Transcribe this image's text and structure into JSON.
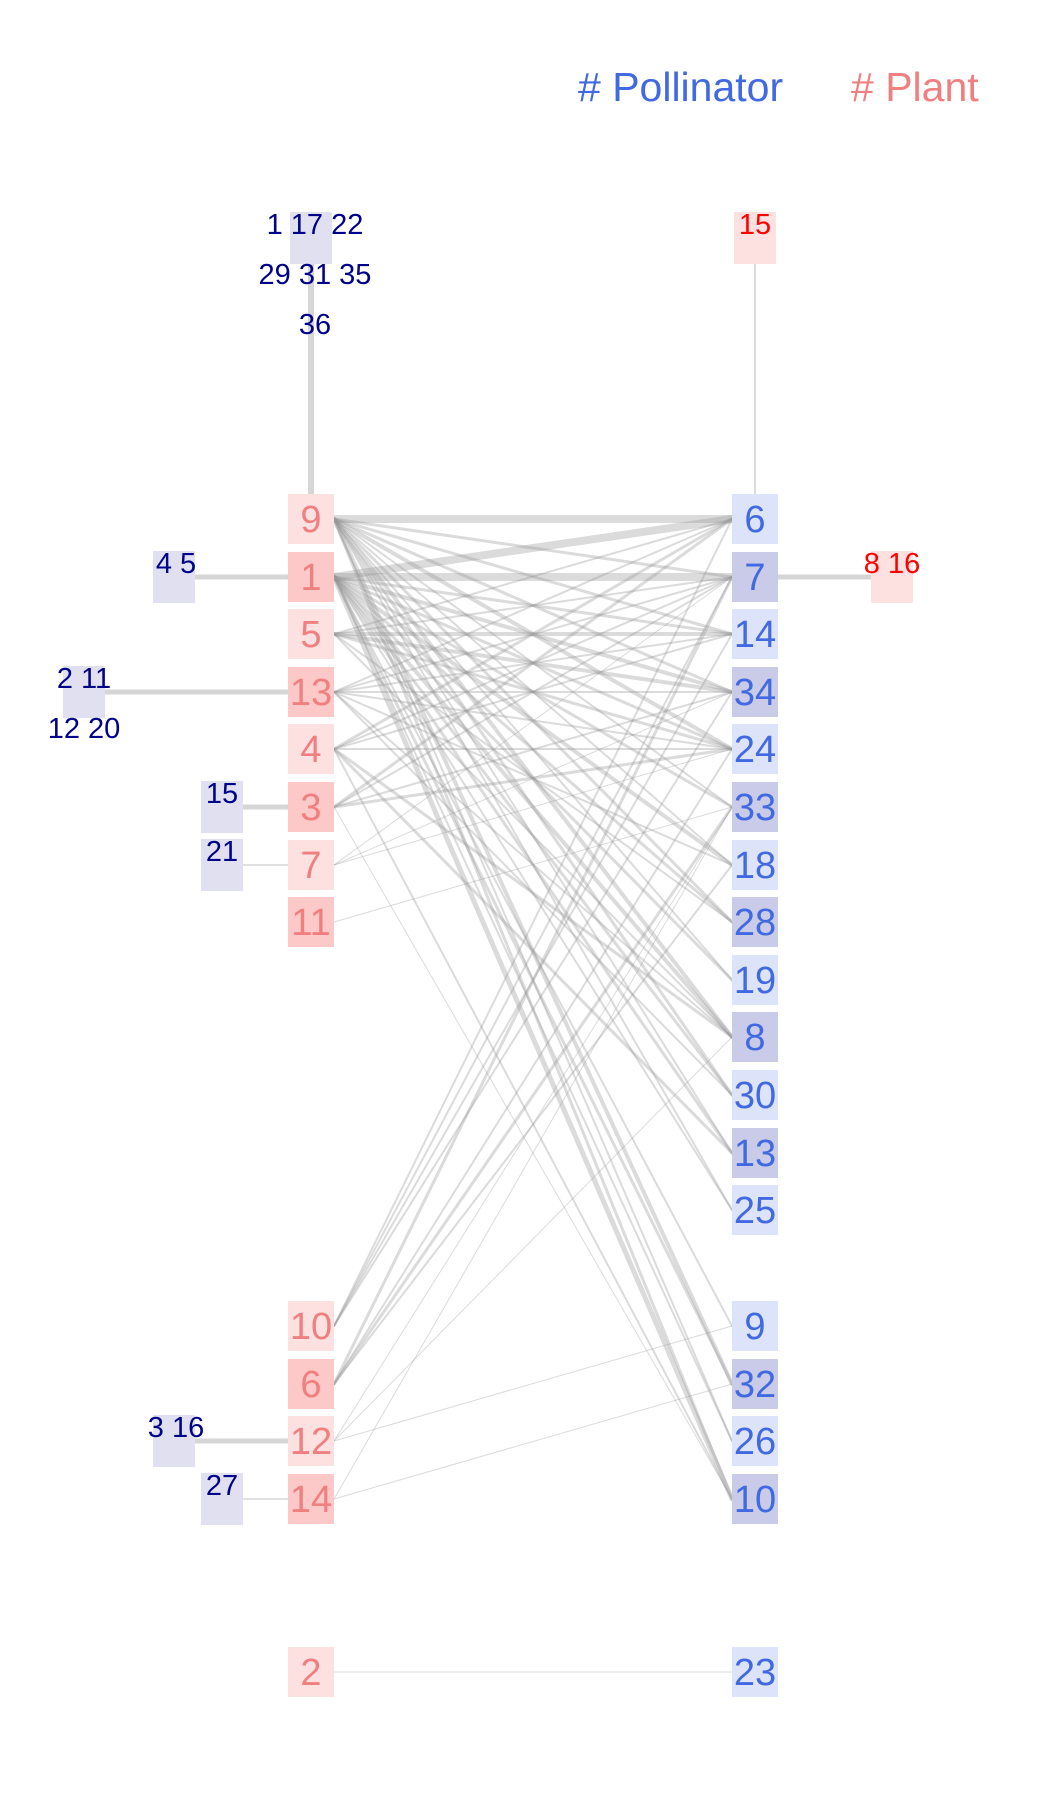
{
  "legend": {
    "pollinator_label": "# Pollinator",
    "plant_label": "# Plant",
    "pollinator_color": "#4169e1",
    "plant_color": "#f08080"
  },
  "colors": {
    "pollinator_text": "#4169e1",
    "plant_text": "#f08080",
    "orphan_pollinator_text": "#00008b",
    "orphan_plant_text": "#ff0000",
    "plant_box_light": "#fde0e0",
    "plant_box_dark": "#fcc8c8",
    "pollinator_box_light": "#dde3f8",
    "pollinator_box_dark": "#c9cbe8",
    "orphan_pollinator_box": "#e0e0f0",
    "edge": "#999999"
  },
  "plants": [
    {
      "label": "9",
      "shade": "light"
    },
    {
      "label": "1",
      "shade": "dark"
    },
    {
      "label": "5",
      "shade": "light"
    },
    {
      "label": "13",
      "shade": "dark"
    },
    {
      "label": "4",
      "shade": "light"
    },
    {
      "label": "3",
      "shade": "dark"
    },
    {
      "label": "7",
      "shade": "light"
    },
    {
      "label": "11",
      "shade": "dark"
    },
    {
      "label": "10",
      "shade": "light"
    },
    {
      "label": "6",
      "shade": "dark"
    },
    {
      "label": "12",
      "shade": "light"
    },
    {
      "label": "14",
      "shade": "dark"
    },
    {
      "label": "2",
      "shade": "light"
    }
  ],
  "pollinators": [
    {
      "label": "6",
      "shade": "light"
    },
    {
      "label": "7",
      "shade": "dark"
    },
    {
      "label": "14",
      "shade": "light"
    },
    {
      "label": "34",
      "shade": "dark"
    },
    {
      "label": "24",
      "shade": "light"
    },
    {
      "label": "33",
      "shade": "dark"
    },
    {
      "label": "18",
      "shade": "light"
    },
    {
      "label": "28",
      "shade": "dark"
    },
    {
      "label": "19",
      "shade": "light"
    },
    {
      "label": "8",
      "shade": "dark"
    },
    {
      "label": "30",
      "shade": "light"
    },
    {
      "label": "13",
      "shade": "dark"
    },
    {
      "label": "25",
      "shade": "light"
    },
    {
      "label": "9",
      "shade": "light"
    },
    {
      "label": "32",
      "shade": "dark"
    },
    {
      "label": "26",
      "shade": "light"
    },
    {
      "label": "10",
      "shade": "dark"
    },
    {
      "label": "23",
      "shade": "light"
    }
  ],
  "orphan_pollinators": [
    {
      "plant": "9",
      "lines": [
        "1 17 22",
        "29 31 35",
        "36"
      ]
    },
    {
      "plant": "1",
      "lines": [
        "4 5"
      ]
    },
    {
      "plant": "13",
      "lines": [
        "2 11",
        "12 20"
      ]
    },
    {
      "plant": "3",
      "lines": [
        "15"
      ]
    },
    {
      "plant": "7",
      "lines": [
        "21"
      ]
    },
    {
      "plant": "12",
      "lines": [
        "3 16"
      ]
    },
    {
      "plant": "14",
      "lines": [
        "27"
      ]
    }
  ],
  "orphan_plants": [
    {
      "pollinator": "6",
      "lines": [
        "15"
      ]
    },
    {
      "pollinator": "7",
      "lines": [
        "8 16"
      ]
    }
  ],
  "links": [
    [
      "9",
      "6",
      8
    ],
    [
      "9",
      "7",
      3
    ],
    [
      "9",
      "14",
      3
    ],
    [
      "9",
      "34",
      3
    ],
    [
      "9",
      "24",
      4
    ],
    [
      "9",
      "33",
      2
    ],
    [
      "9",
      "18",
      2
    ],
    [
      "9",
      "28",
      3
    ],
    [
      "9",
      "19",
      2
    ],
    [
      "9",
      "8",
      4
    ],
    [
      "9",
      "30",
      3
    ],
    [
      "9",
      "13",
      2
    ],
    [
      "9",
      "25",
      2
    ],
    [
      "9",
      "32",
      4
    ],
    [
      "9",
      "26",
      2
    ],
    [
      "9",
      "10",
      3
    ],
    [
      "1",
      "6",
      8
    ],
    [
      "1",
      "7",
      8
    ],
    [
      "1",
      "14",
      3
    ],
    [
      "1",
      "34",
      4
    ],
    [
      "1",
      "24",
      3
    ],
    [
      "1",
      "33",
      3
    ],
    [
      "1",
      "18",
      4
    ],
    [
      "1",
      "28",
      3
    ],
    [
      "1",
      "19",
      3
    ],
    [
      "1",
      "8",
      4
    ],
    [
      "1",
      "30",
      3
    ],
    [
      "1",
      "13",
      3
    ],
    [
      "1",
      "25",
      2
    ],
    [
      "1",
      "9",
      2
    ],
    [
      "1",
      "32",
      3
    ],
    [
      "1",
      "26",
      2
    ],
    [
      "1",
      "10",
      5
    ],
    [
      "5",
      "6",
      2
    ],
    [
      "5",
      "7",
      2
    ],
    [
      "5",
      "14",
      4
    ],
    [
      "5",
      "34",
      4
    ],
    [
      "5",
      "24",
      3
    ],
    [
      "5",
      "28",
      2
    ],
    [
      "5",
      "8",
      2
    ],
    [
      "13",
      "6",
      2
    ],
    [
      "13",
      "7",
      2
    ],
    [
      "13",
      "14",
      2
    ],
    [
      "13",
      "34",
      2
    ],
    [
      "13",
      "24",
      2
    ],
    [
      "13",
      "18",
      2
    ],
    [
      "13",
      "8",
      2
    ],
    [
      "13",
      "30",
      2
    ],
    [
      "4",
      "6",
      3
    ],
    [
      "4",
      "7",
      2
    ],
    [
      "4",
      "14",
      2
    ],
    [
      "4",
      "24",
      2
    ],
    [
      "4",
      "8",
      3
    ],
    [
      "4",
      "13",
      3
    ],
    [
      "4",
      "10",
      2
    ],
    [
      "3",
      "6",
      3
    ],
    [
      "3",
      "7",
      2
    ],
    [
      "3",
      "24",
      3
    ],
    [
      "3",
      "34",
      2
    ],
    [
      "3",
      "10",
      1
    ],
    [
      "7",
      "7",
      1
    ],
    [
      "7",
      "34",
      1
    ],
    [
      "7",
      "24",
      1
    ],
    [
      "11",
      "33",
      1
    ],
    [
      "10",
      "6",
      2
    ],
    [
      "10",
      "7",
      2
    ],
    [
      "10",
      "14",
      2
    ],
    [
      "10",
      "34",
      2
    ],
    [
      "6",
      "7",
      3
    ],
    [
      "6",
      "24",
      2
    ],
    [
      "6",
      "33",
      3
    ],
    [
      "6",
      "18",
      2
    ],
    [
      "12",
      "9",
      1
    ],
    [
      "12",
      "8",
      1
    ],
    [
      "12",
      "33",
      1
    ],
    [
      "14",
      "32",
      1
    ],
    [
      "14",
      "33",
      1
    ],
    [
      "2",
      "23",
      1
    ]
  ]
}
